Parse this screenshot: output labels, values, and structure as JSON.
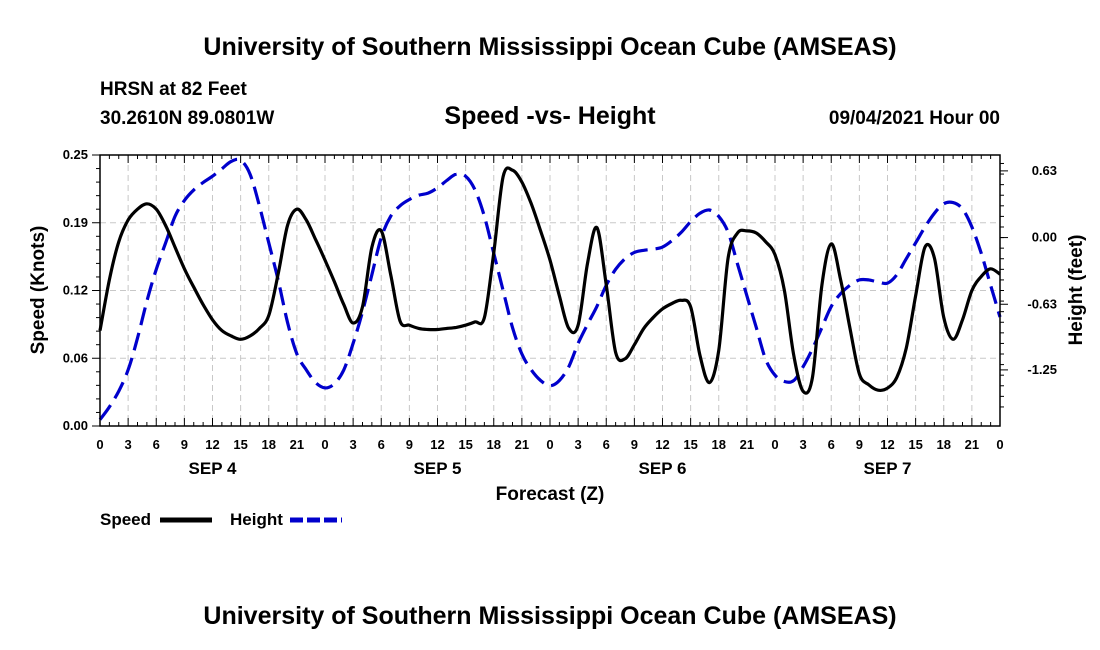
{
  "header": {
    "title": "University of Southern Mississippi Ocean Cube (AMSEAS)",
    "station": "HRSN at 82 Feet",
    "coords": "30.2610N  89.0801W",
    "subtitle": "Speed -vs- Height",
    "run": "09/04/2021 Hour 00"
  },
  "footer": {
    "title": "University of Southern Mississippi Ocean Cube (AMSEAS)"
  },
  "legend": {
    "speed": "Speed",
    "height": "Height"
  },
  "chart_data": {
    "type": "line",
    "title": "Speed -vs- Height",
    "xlabel": "Forecast (Z)",
    "ylabel_left": "Speed (Knots)",
    "ylabel_right": "Height (feet)",
    "x_range": [
      0,
      96
    ],
    "ylim_left": [
      0,
      0.25
    ],
    "ylim_right": [
      -1.78,
      0.78
    ],
    "x_tick_labels": [
      "0",
      "3",
      "6",
      "9",
      "12",
      "15",
      "18",
      "21",
      "0",
      "3",
      "6",
      "9",
      "12",
      "15",
      "18",
      "21",
      "0",
      "3",
      "6",
      "9",
      "12",
      "15",
      "18",
      "21",
      "0",
      "3",
      "6",
      "9",
      "12",
      "15",
      "18",
      "21",
      "0"
    ],
    "date_labels": [
      "SEP 4",
      "SEP 5",
      "SEP 6",
      "SEP 7"
    ],
    "y_left_ticks": [
      {
        "v": 0.0,
        "label": "0.00"
      },
      {
        "v": 0.0625,
        "label": "0.06"
      },
      {
        "v": 0.125,
        "label": "0.12"
      },
      {
        "v": 0.1875,
        "label": "0.19"
      },
      {
        "v": 0.25,
        "label": "0.25"
      }
    ],
    "y_right_ticks": [
      {
        "v": 0.63,
        "label": "0.63"
      },
      {
        "v": 0.0,
        "label": "0.00"
      },
      {
        "v": -0.63,
        "label": "-0.63"
      },
      {
        "v": -1.25,
        "label": "-1.25"
      }
    ],
    "grid": true,
    "legend_position": "bottom-left",
    "series": [
      {
        "name": "Speed",
        "axis": "left",
        "color": "#000000",
        "style": "solid",
        "points": [
          [
            0,
            0.088
          ],
          [
            1,
            0.135
          ],
          [
            2,
            0.17
          ],
          [
            3,
            0.19
          ],
          [
            4,
            0.2
          ],
          [
            5,
            0.205
          ],
          [
            6,
            0.2
          ],
          [
            7,
            0.185
          ],
          [
            8,
            0.165
          ],
          [
            9,
            0.145
          ],
          [
            10,
            0.128
          ],
          [
            11,
            0.112
          ],
          [
            12,
            0.098
          ],
          [
            13,
            0.088
          ],
          [
            14,
            0.083
          ],
          [
            15,
            0.08
          ],
          [
            16,
            0.083
          ],
          [
            17,
            0.09
          ],
          [
            18,
            0.102
          ],
          [
            19,
            0.14
          ],
          [
            20,
            0.185
          ],
          [
            21,
            0.2
          ],
          [
            22,
            0.19
          ],
          [
            23,
            0.172
          ],
          [
            24,
            0.153
          ],
          [
            25,
            0.133
          ],
          [
            26,
            0.112
          ],
          [
            27,
            0.095
          ],
          [
            28,
            0.11
          ],
          [
            29,
            0.165
          ],
          [
            30,
            0.18
          ],
          [
            31,
            0.14
          ],
          [
            32,
            0.097
          ],
          [
            33,
            0.093
          ],
          [
            34,
            0.09
          ],
          [
            35,
            0.089
          ],
          [
            36,
            0.089
          ],
          [
            37,
            0.09
          ],
          [
            38,
            0.091
          ],
          [
            39,
            0.093
          ],
          [
            40,
            0.096
          ],
          [
            41,
            0.1
          ],
          [
            42,
            0.16
          ],
          [
            43,
            0.23
          ],
          [
            44,
            0.236
          ],
          [
            45,
            0.225
          ],
          [
            46,
            0.205
          ],
          [
            47,
            0.18
          ],
          [
            48,
            0.153
          ],
          [
            49,
            0.12
          ],
          [
            50,
            0.09
          ],
          [
            51,
            0.093
          ],
          [
            52,
            0.15
          ],
          [
            53,
            0.183
          ],
          [
            54,
            0.13
          ],
          [
            55,
            0.068
          ],
          [
            56,
            0.062
          ],
          [
            57,
            0.075
          ],
          [
            58,
            0.09
          ],
          [
            59,
            0.1
          ],
          [
            60,
            0.108
          ],
          [
            61,
            0.113
          ],
          [
            62,
            0.116
          ],
          [
            63,
            0.11
          ],
          [
            64,
            0.065
          ],
          [
            65,
            0.04
          ],
          [
            66,
            0.07
          ],
          [
            67,
            0.155
          ],
          [
            68,
            0.178
          ],
          [
            69,
            0.18
          ],
          [
            70,
            0.178
          ],
          [
            71,
            0.17
          ],
          [
            72,
            0.158
          ],
          [
            73,
            0.125
          ],
          [
            74,
            0.065
          ],
          [
            75,
            0.032
          ],
          [
            76,
            0.045
          ],
          [
            77,
            0.13
          ],
          [
            78,
            0.168
          ],
          [
            79,
            0.135
          ],
          [
            80,
            0.09
          ],
          [
            81,
            0.048
          ],
          [
            82,
            0.038
          ],
          [
            83,
            0.033
          ],
          [
            84,
            0.035
          ],
          [
            85,
            0.045
          ],
          [
            86,
            0.072
          ],
          [
            87,
            0.12
          ],
          [
            88,
            0.165
          ],
          [
            89,
            0.155
          ],
          [
            90,
            0.1
          ],
          [
            91,
            0.08
          ],
          [
            92,
            0.098
          ],
          [
            93,
            0.125
          ],
          [
            94,
            0.138
          ],
          [
            95,
            0.145
          ],
          [
            96,
            0.14
          ]
        ]
      },
      {
        "name": "Height",
        "axis": "right",
        "color": "#0000cc",
        "style": "dashed",
        "points": [
          [
            0,
            -1.72
          ],
          [
            1,
            -1.6
          ],
          [
            2,
            -1.45
          ],
          [
            3,
            -1.25
          ],
          [
            4,
            -0.95
          ],
          [
            5,
            -0.6
          ],
          [
            6,
            -0.3
          ],
          [
            7,
            -0.05
          ],
          [
            8,
            0.2
          ],
          [
            9,
            0.35
          ],
          [
            10,
            0.45
          ],
          [
            11,
            0.52
          ],
          [
            12,
            0.58
          ],
          [
            13,
            0.65
          ],
          [
            14,
            0.72
          ],
          [
            15,
            0.73
          ],
          [
            16,
            0.6
          ],
          [
            17,
            0.3
          ],
          [
            18,
            -0.05
          ],
          [
            19,
            -0.4
          ],
          [
            20,
            -0.8
          ],
          [
            21,
            -1.1
          ],
          [
            22,
            -1.25
          ],
          [
            23,
            -1.37
          ],
          [
            24,
            -1.42
          ],
          [
            25,
            -1.38
          ],
          [
            26,
            -1.25
          ],
          [
            27,
            -1.0
          ],
          [
            28,
            -0.7
          ],
          [
            29,
            -0.35
          ],
          [
            30,
            0.0
          ],
          [
            31,
            0.2
          ],
          [
            32,
            0.3
          ],
          [
            33,
            0.36
          ],
          [
            34,
            0.4
          ],
          [
            35,
            0.42
          ],
          [
            36,
            0.47
          ],
          [
            37,
            0.54
          ],
          [
            38,
            0.6
          ],
          [
            39,
            0.58
          ],
          [
            40,
            0.45
          ],
          [
            41,
            0.2
          ],
          [
            42,
            -0.15
          ],
          [
            43,
            -0.5
          ],
          [
            44,
            -0.85
          ],
          [
            45,
            -1.1
          ],
          [
            46,
            -1.25
          ],
          [
            47,
            -1.35
          ],
          [
            48,
            -1.4
          ],
          [
            49,
            -1.35
          ],
          [
            50,
            -1.22
          ],
          [
            51,
            -1.0
          ],
          [
            52,
            -0.82
          ],
          [
            53,
            -0.65
          ],
          [
            54,
            -0.45
          ],
          [
            55,
            -0.3
          ],
          [
            56,
            -0.2
          ],
          [
            57,
            -0.14
          ],
          [
            58,
            -0.12
          ],
          [
            59,
            -0.11
          ],
          [
            60,
            -0.09
          ],
          [
            61,
            -0.03
          ],
          [
            62,
            0.05
          ],
          [
            63,
            0.15
          ],
          [
            64,
            0.23
          ],
          [
            65,
            0.26
          ],
          [
            66,
            0.2
          ],
          [
            67,
            0.05
          ],
          [
            68,
            -0.25
          ],
          [
            69,
            -0.55
          ],
          [
            70,
            -0.85
          ],
          [
            71,
            -1.15
          ],
          [
            72,
            -1.3
          ],
          [
            73,
            -1.36
          ],
          [
            74,
            -1.35
          ],
          [
            75,
            -1.22
          ],
          [
            76,
            -1.05
          ],
          [
            77,
            -0.85
          ],
          [
            78,
            -0.65
          ],
          [
            79,
            -0.53
          ],
          [
            80,
            -0.45
          ],
          [
            81,
            -0.4
          ],
          [
            82,
            -0.4
          ],
          [
            83,
            -0.42
          ],
          [
            84,
            -0.43
          ],
          [
            85,
            -0.35
          ],
          [
            86,
            -0.2
          ],
          [
            87,
            -0.05
          ],
          [
            88,
            0.1
          ],
          [
            89,
            0.23
          ],
          [
            90,
            0.32
          ],
          [
            91,
            0.33
          ],
          [
            92,
            0.27
          ],
          [
            93,
            0.1
          ],
          [
            94,
            -0.15
          ],
          [
            95,
            -0.45
          ],
          [
            96,
            -0.75
          ]
        ]
      }
    ]
  }
}
